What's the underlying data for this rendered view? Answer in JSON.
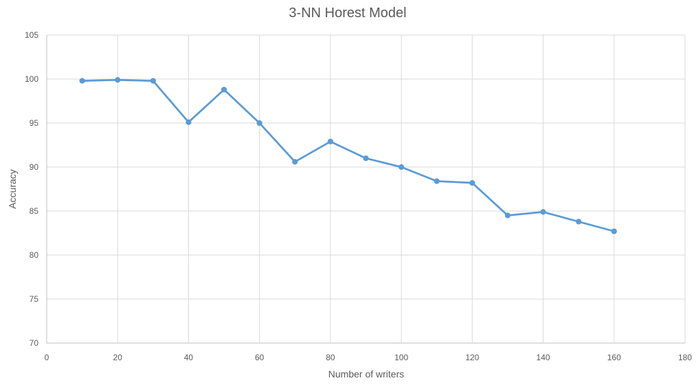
{
  "chart_data": {
    "type": "line",
    "title": "3-NN Horest Model",
    "xlabel": "Number of writers",
    "ylabel": "Accuracy",
    "xlim": [
      0,
      180
    ],
    "ylim": [
      70,
      105
    ],
    "xticks": [
      0,
      20,
      40,
      60,
      80,
      100,
      120,
      140,
      160,
      180
    ],
    "yticks": [
      70,
      75,
      80,
      85,
      90,
      95,
      100,
      105
    ],
    "grid": true,
    "legend": "none",
    "series": [
      {
        "color": "#5b9bd5",
        "x": [
          10,
          20,
          30,
          40,
          50,
          60,
          70,
          80,
          90,
          100,
          110,
          120,
          130,
          140,
          150,
          160
        ],
        "y": [
          99.8,
          99.9,
          99.8,
          95.1,
          98.8,
          95.0,
          90.6,
          92.9,
          91.0,
          90.0,
          88.4,
          88.2,
          84.5,
          84.9,
          83.8,
          82.7
        ]
      }
    ]
  }
}
